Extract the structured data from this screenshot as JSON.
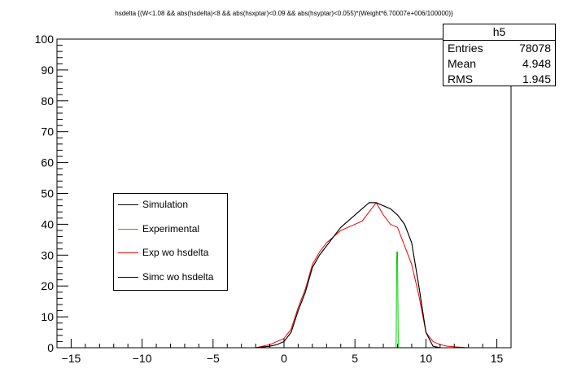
{
  "chart_data": {
    "type": "histogram",
    "title": "hsdelta {(W<1.08 && abs(hsdelta)<8 && abs(hsxptar)<0.09 && abs(hsyptar)<0.055)*(Weight*6.70007e+006/100000)}",
    "xlabel": "",
    "ylabel": "",
    "xlim": [
      -16,
      16
    ],
    "ylim": [
      0,
      100
    ],
    "x_ticks": [
      -15,
      -10,
      -5,
      0,
      5,
      10,
      15
    ],
    "y_ticks": [
      0,
      10,
      20,
      30,
      40,
      50,
      60,
      70,
      80,
      90,
      100
    ],
    "grid": false,
    "legend_position": "middle-left",
    "stats": {
      "name": "h5",
      "rows": [
        {
          "label": "Entries",
          "value": "78078"
        },
        {
          "label": "Mean",
          "value": "4.948"
        },
        {
          "label": "RMS",
          "value": "1.945"
        }
      ]
    },
    "series": [
      {
        "name": "Simulation",
        "color": "#000000",
        "x": [
          -2,
          -1,
          -0.5,
          0,
          0.5,
          1,
          1.5,
          2,
          2.5,
          3,
          3.5,
          4,
          4.5,
          5,
          5.5,
          6,
          6.5,
          7,
          7.5,
          8,
          8.5,
          9,
          9.5,
          10,
          10.5,
          11
        ],
        "values": [
          0,
          0.5,
          1,
          2,
          5,
          12,
          18,
          26,
          30,
          33,
          36,
          39,
          41,
          43,
          45,
          47,
          47,
          46,
          45,
          43,
          40,
          34,
          20,
          5,
          0.5,
          0
        ]
      },
      {
        "name": "Experimental",
        "color": "#00cc00",
        "x": [
          -2,
          0,
          7.9,
          7.95,
          8.0,
          8.05,
          11
        ],
        "values": [
          0,
          0,
          0,
          31,
          31,
          0,
          0
        ]
      },
      {
        "name": "Exp wo hsdelta",
        "color": "#ee0000",
        "x": [
          -2,
          -1,
          -0.5,
          0,
          0.5,
          1,
          1.5,
          2,
          2.5,
          3,
          3.5,
          4,
          4.5,
          5,
          5.5,
          6,
          6.5,
          7,
          7.5,
          8,
          8.5,
          9,
          9.5,
          10,
          10.5,
          11,
          11.5,
          12,
          13
        ],
        "values": [
          0,
          1,
          2,
          3,
          6,
          13,
          19,
          27,
          31,
          34,
          36,
          38,
          39,
          40,
          41,
          44,
          47,
          43,
          40,
          39,
          33,
          27,
          17,
          5,
          2,
          1,
          0.5,
          0.3,
          0
        ]
      },
      {
        "name": "Simc wo hsdelta",
        "color": "#000000",
        "x": [
          -2,
          -1,
          -0.5,
          0,
          0.5,
          1,
          1.5,
          2,
          2.5,
          3,
          3.5,
          4,
          4.5,
          5,
          5.5,
          6,
          6.5,
          7,
          7.5,
          8,
          8.5,
          9,
          9.5,
          10,
          10.5,
          11
        ],
        "values": [
          0,
          0.5,
          1,
          2,
          5,
          12,
          18,
          26,
          30,
          33,
          36,
          39,
          41,
          43,
          45,
          47,
          47,
          46,
          45,
          43,
          40,
          34,
          20,
          5,
          0.5,
          0
        ]
      }
    ]
  }
}
